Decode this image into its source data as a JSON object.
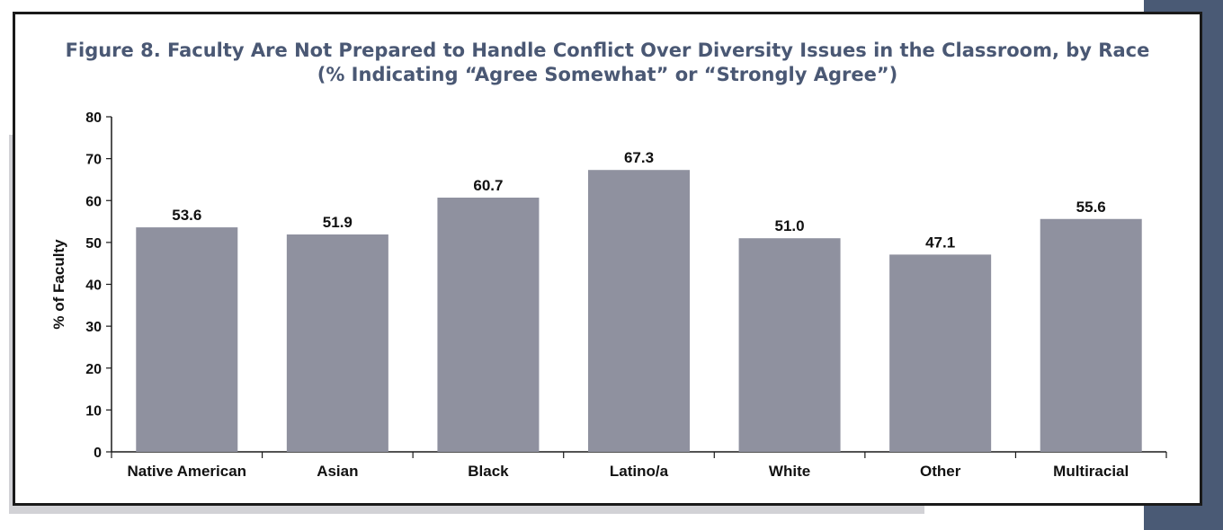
{
  "chart_data": {
    "type": "bar",
    "title": "Figure 8. Faculty Are Not Prepared to Handle Conflict Over Diversity Issues in the Classroom, by Race",
    "subtitle": "(% Indicating “Agree Somewhat” or “Strongly Agree”)",
    "xlabel": "",
    "ylabel": "% of Faculty",
    "categories": [
      "Native American",
      "Asian",
      "Black",
      "Latino/a",
      "White",
      "Other",
      "Multiracial"
    ],
    "values": [
      53.6,
      51.9,
      60.7,
      67.3,
      51.0,
      47.1,
      55.6
    ],
    "value_labels": [
      "53.6",
      "51.9",
      "60.7",
      "67.3",
      "51.0",
      "47.1",
      "55.6"
    ],
    "ylim": [
      0,
      80
    ],
    "yticks": [
      0,
      10,
      20,
      30,
      40,
      50,
      60,
      70,
      80
    ],
    "grid": false,
    "legend": "none",
    "bar_color": "#8f919f",
    "title_color": "#4a5874"
  }
}
